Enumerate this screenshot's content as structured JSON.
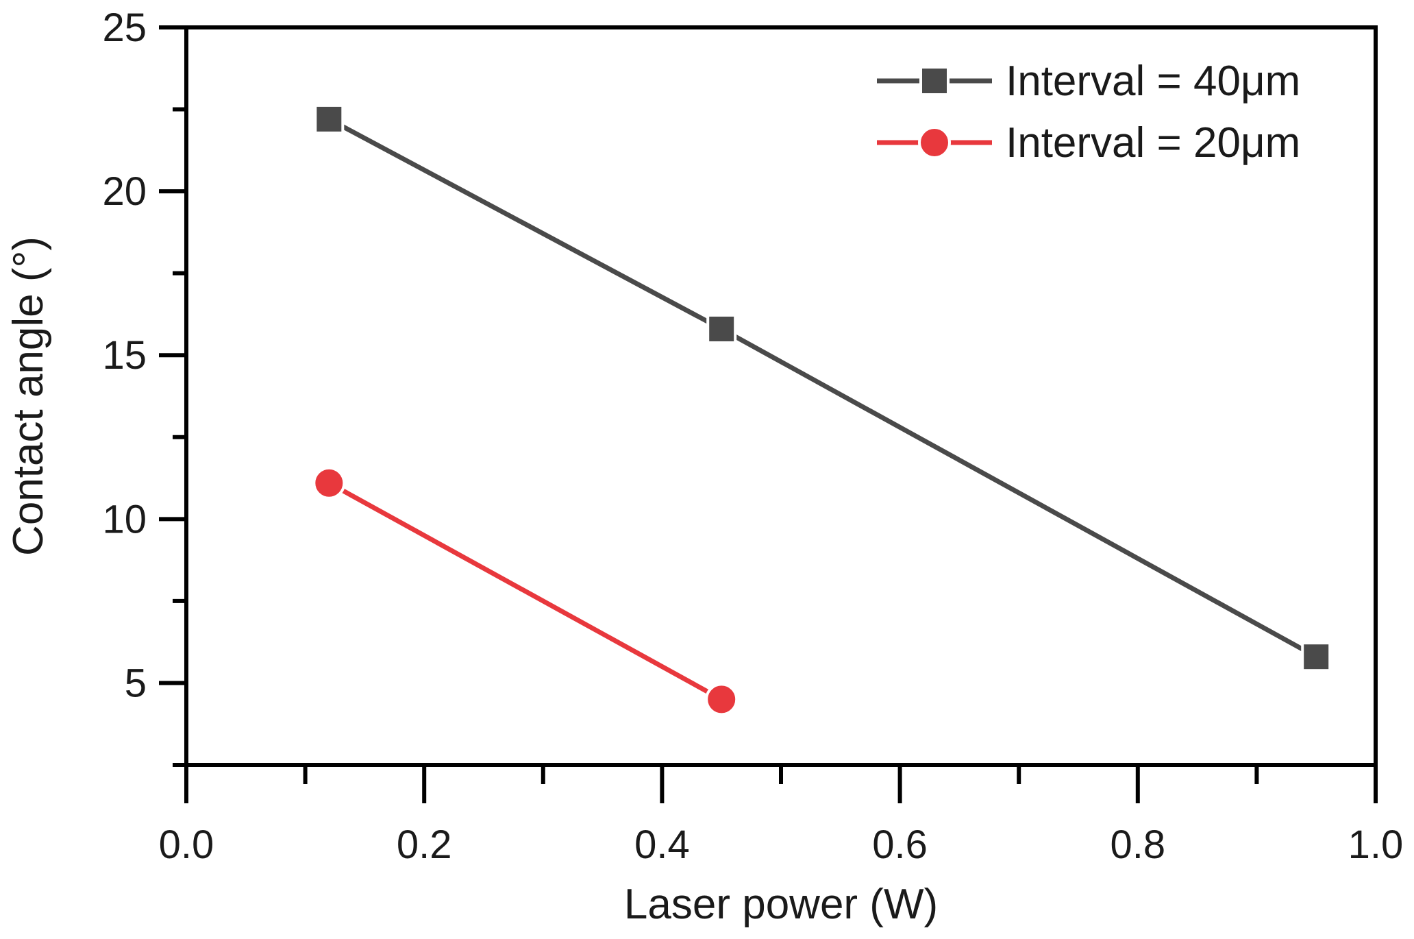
{
  "chart_data": {
    "type": "line",
    "title": "",
    "xlabel": "Laser power  (W)",
    "ylabel": "Contact angle (°)",
    "xlim": [
      0.0,
      1.0
    ],
    "ylim": [
      2.5,
      25
    ],
    "xticks": [
      0.0,
      0.2,
      0.4,
      0.6,
      0.8,
      1.0
    ],
    "xtick_labels": [
      "0.0",
      "0.2",
      "0.4",
      "0.6",
      "0.8",
      "1.0"
    ],
    "x_minor_ticks": [
      0.1,
      0.3,
      0.5,
      0.7,
      0.9
    ],
    "yticks": [
      5,
      10,
      15,
      20,
      25
    ],
    "ytick_labels": [
      "5",
      "10",
      "15",
      "20",
      "25"
    ],
    "y_minor_ticks": [
      2.5,
      7.5,
      12.5,
      17.5,
      22.5
    ],
    "grid": false,
    "legend_position": "top-right",
    "series": [
      {
        "name": "Interval = 40μm",
        "marker": "square",
        "color": "#4a4a4a",
        "x": [
          0.12,
          0.45,
          0.95
        ],
        "y": [
          22.2,
          15.8,
          5.8
        ]
      },
      {
        "name": "Interval = 20μm",
        "marker": "circle",
        "color": "#e8383d",
        "x": [
          0.12,
          0.45
        ],
        "y": [
          11.1,
          4.5
        ]
      }
    ]
  }
}
